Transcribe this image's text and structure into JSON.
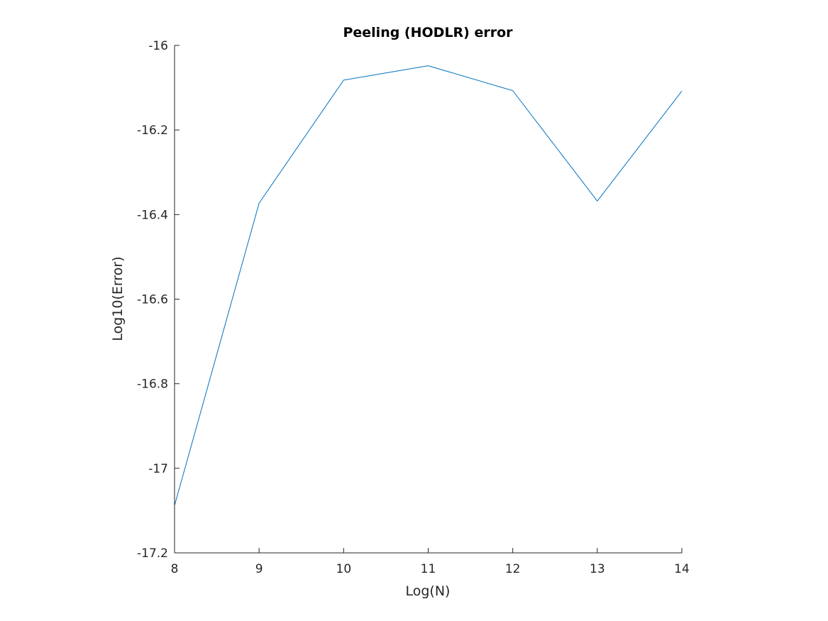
{
  "chart_data": {
    "type": "line",
    "title": "Peeling (HODLR) error",
    "xlabel": "Log(N)",
    "ylabel": "Log10(Error)",
    "xlim": [
      8,
      14
    ],
    "ylim": [
      -17.2,
      -16
    ],
    "xticks": [
      8,
      9,
      10,
      11,
      12,
      13,
      14
    ],
    "yticks": [
      -17.2,
      -17,
      -16.8,
      -16.6,
      -16.4,
      -16.2,
      -16
    ],
    "xtick_labels": [
      "8",
      "9",
      "10",
      "11",
      "12",
      "13",
      "14"
    ],
    "ytick_labels": [
      "-17.2",
      "-17",
      "-16.8",
      "-16.6",
      "-16.4",
      "-16.2",
      "-16"
    ],
    "grid": false,
    "series": [
      {
        "x": [
          8,
          9,
          10,
          11,
          12,
          13,
          14
        ],
        "values": [
          -17.088,
          -16.373,
          -16.082,
          -16.048,
          -16.107,
          -16.368,
          -16.108
        ],
        "color": "#0072BD"
      }
    ]
  }
}
